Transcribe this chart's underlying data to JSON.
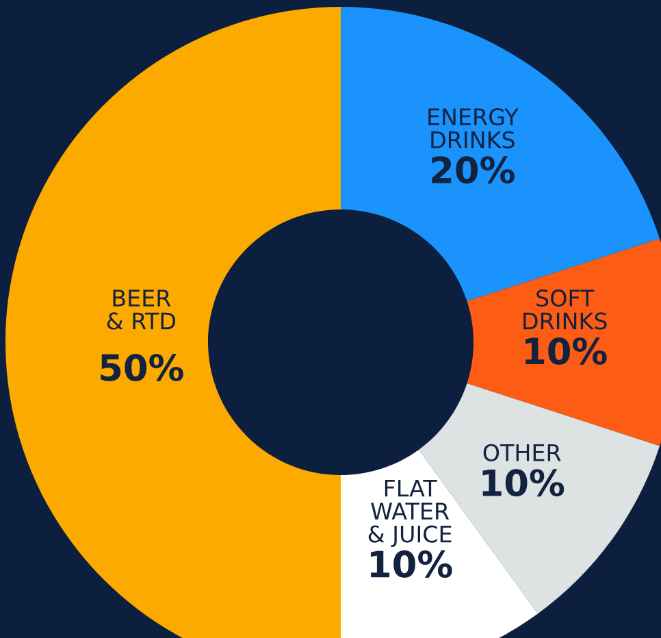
{
  "chart_data": {
    "type": "donut",
    "categories": [
      "ENERGY\nDRINKS",
      "SOFT\nDRINKS",
      "OTHER",
      "FLAT\nWATER\n& JUICE",
      "BEER\n& RTD"
    ],
    "values": [
      20,
      10,
      10,
      10,
      50
    ],
    "value_labels": [
      "20%",
      "10%",
      "10%",
      "10%",
      "50%"
    ],
    "colors": [
      "#1a94fc",
      "#fc5c14",
      "#dde3e3",
      "#ffffff",
      "#fcaa00"
    ],
    "legend": false
  }
}
